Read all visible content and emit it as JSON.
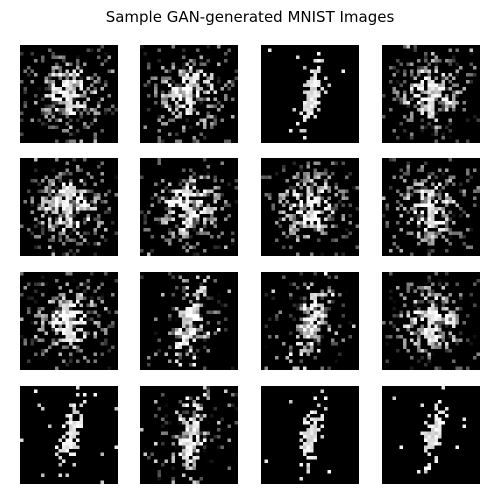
{
  "figure": {
    "title": "Sample GAN-generated MNIST Images"
  },
  "samples": [
    {
      "style": "noise"
    },
    {
      "style": "noise"
    },
    {
      "style": "digit"
    },
    {
      "style": "noise"
    },
    {
      "style": "noise"
    },
    {
      "style": "noise"
    },
    {
      "style": "noise"
    },
    {
      "style": "noise"
    },
    {
      "style": "noise"
    },
    {
      "style": "blur"
    },
    {
      "style": "blur"
    },
    {
      "style": "noise"
    },
    {
      "style": "digit"
    },
    {
      "style": "blur"
    },
    {
      "style": "digit"
    },
    {
      "style": "digit"
    }
  ]
}
